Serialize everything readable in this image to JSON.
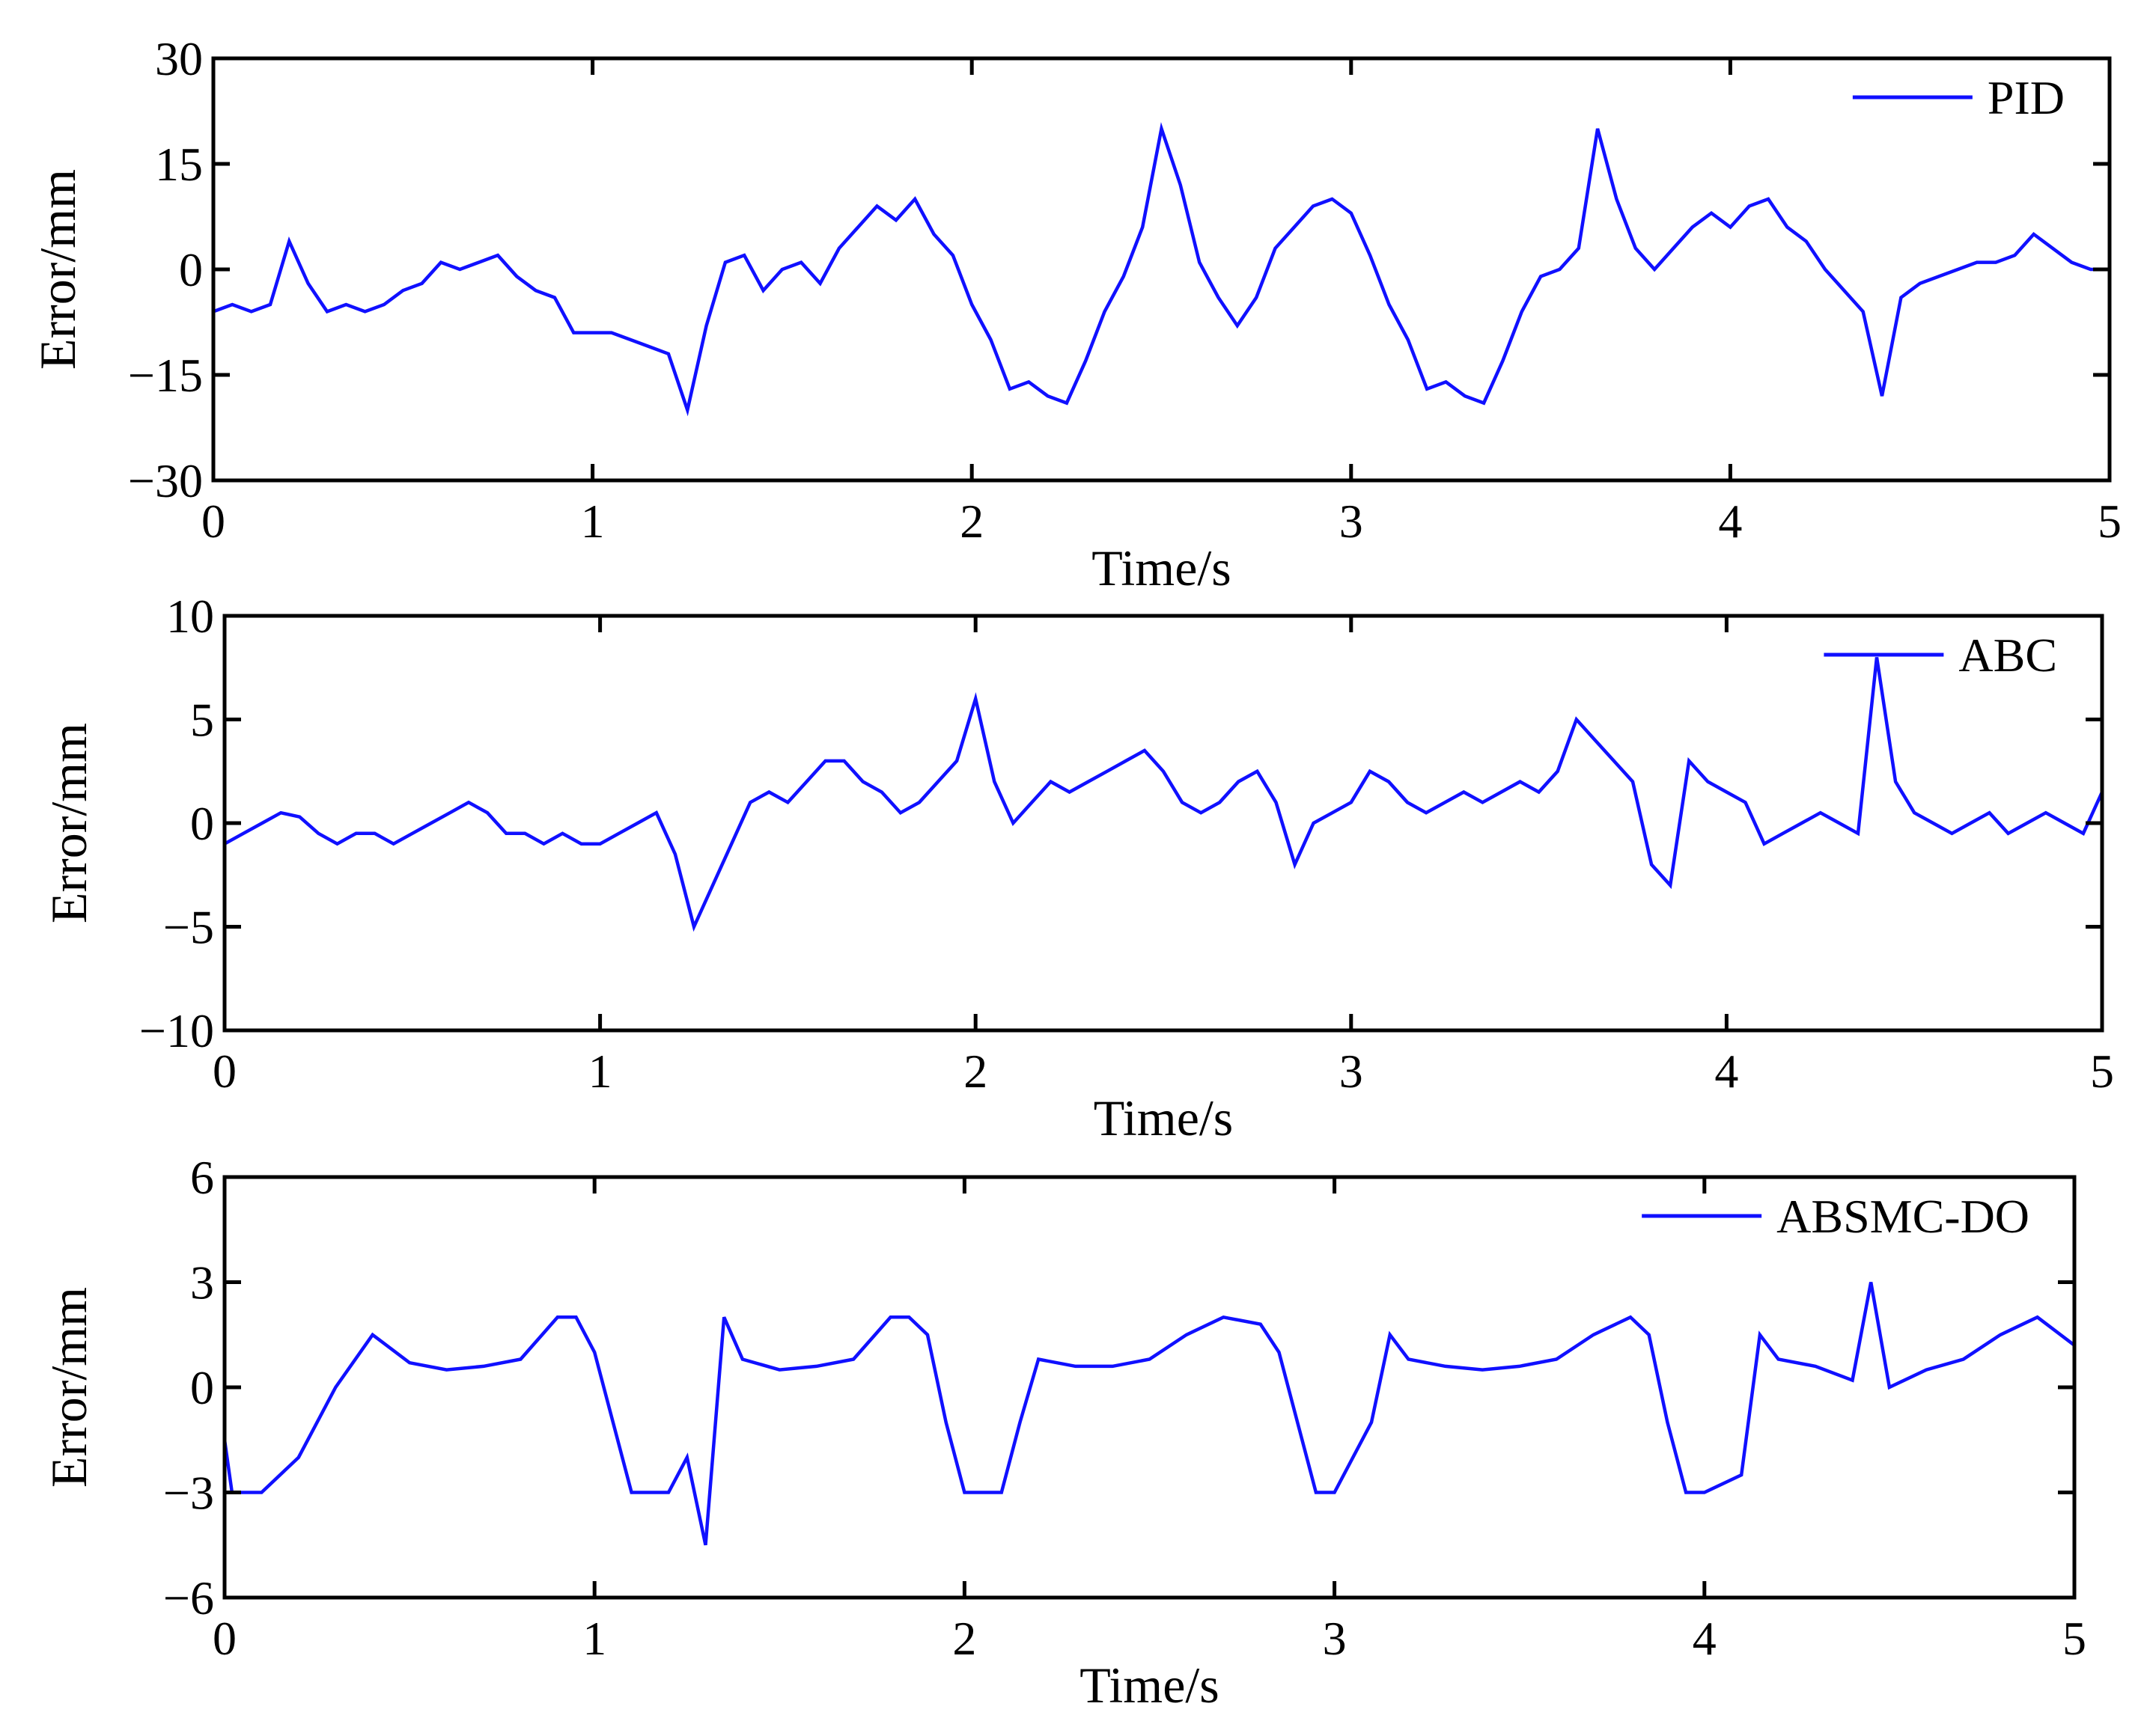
{
  "chart_data": [
    {
      "type": "line",
      "xlabel": "Time/s",
      "ylabel": "Error/mm",
      "xlim": [
        0,
        5
      ],
      "ylim": [
        -30,
        30
      ],
      "xticks": [
        0,
        1,
        2,
        3,
        4,
        5
      ],
      "yticks": [
        30,
        15,
        0,
        -15,
        -30
      ],
      "xtick_labels": [
        "0",
        "1",
        "2",
        "3",
        "4",
        "5"
      ],
      "ytick_labels": [
        "30",
        "15",
        "0",
        "−15",
        "−30"
      ],
      "grid": false,
      "legend_position": "top-right",
      "series": [
        {
          "name": "PID",
          "color": "#1010ff",
          "x": [
            0,
            0.05,
            0.1,
            0.15,
            0.2,
            0.25,
            0.3,
            0.35,
            0.4,
            0.45,
            0.5,
            0.55,
            0.6,
            0.65,
            0.7,
            0.75,
            0.8,
            0.85,
            0.9,
            0.95,
            1.0,
            1.05,
            1.1,
            1.15,
            1.2,
            1.25,
            1.3,
            1.35,
            1.4,
            1.45,
            1.5,
            1.55,
            1.6,
            1.65,
            1.7,
            1.75,
            1.8,
            1.85,
            1.9,
            1.95,
            2.0,
            2.05,
            2.1,
            2.15,
            2.2,
            2.25,
            2.3,
            2.35,
            2.4,
            2.45,
            2.5,
            2.55,
            2.6,
            2.65,
            2.7,
            2.75,
            2.8,
            2.85,
            2.9,
            2.95,
            3.0,
            3.05,
            3.1,
            3.15,
            3.2,
            3.25,
            3.3,
            3.35,
            3.4,
            3.45,
            3.5,
            3.55,
            3.6,
            3.65,
            3.7,
            3.75,
            3.8,
            3.85,
            3.9,
            3.95,
            4.0,
            4.05,
            4.1,
            4.15,
            4.2,
            4.25,
            4.3,
            4.35,
            4.4,
            4.45,
            4.5,
            4.55,
            4.6,
            4.65,
            4.7,
            4.75,
            4.8,
            4.85,
            4.9,
            4.95,
            5.0
          ],
          "y": [
            -6,
            -5,
            -6,
            -5,
            4,
            -2,
            -6,
            -5,
            -6,
            -5,
            -3,
            -2,
            1,
            0,
            1,
            2,
            -1,
            -3,
            -4,
            -9,
            -9,
            -9,
            -10,
            -11,
            -12,
            -20,
            -8,
            1,
            2,
            -3,
            0,
            1,
            -2,
            3,
            6,
            9,
            7,
            10,
            5,
            2,
            -5,
            -10,
            -17,
            -16,
            -18,
            -19,
            -13,
            -6,
            -1,
            6,
            20,
            12,
            1,
            -4,
            -8,
            -4,
            3,
            6,
            9,
            10,
            8,
            2,
            -5,
            -10,
            -17,
            -16,
            -18,
            -19,
            -13,
            -6,
            -1,
            0,
            3,
            20,
            10,
            3,
            0,
            3,
            6,
            8,
            6,
            9,
            10,
            6,
            4,
            0,
            -3,
            -6,
            -18,
            -4,
            -2,
            -1,
            0,
            1,
            1,
            2,
            5,
            3,
            1,
            0,
            0
          ]
        }
      ]
    },
    {
      "type": "line",
      "xlabel": "Time/s",
      "ylabel": "Error/mm",
      "xlim": [
        0,
        5
      ],
      "ylim": [
        -10,
        10
      ],
      "xticks": [
        0,
        1,
        2,
        3,
        4,
        5
      ],
      "yticks": [
        10,
        5,
        0,
        -5,
        -10
      ],
      "xtick_labels": [
        "0",
        "1",
        "2",
        "3",
        "4",
        "5"
      ],
      "ytick_labels": [
        "10",
        "5",
        "0",
        "−5",
        "−10"
      ],
      "grid": false,
      "legend_position": "top-right",
      "series": [
        {
          "name": "ABC",
          "color": "#1010ff",
          "x": [
            0,
            0.05,
            0.1,
            0.15,
            0.2,
            0.25,
            0.3,
            0.35,
            0.4,
            0.45,
            0.5,
            0.55,
            0.6,
            0.65,
            0.7,
            0.75,
            0.8,
            0.85,
            0.9,
            0.95,
            1.0,
            1.05,
            1.1,
            1.15,
            1.2,
            1.25,
            1.3,
            1.35,
            1.4,
            1.45,
            1.5,
            1.55,
            1.6,
            1.65,
            1.7,
            1.75,
            1.8,
            1.85,
            1.9,
            1.95,
            2.0,
            2.05,
            2.1,
            2.15,
            2.2,
            2.25,
            2.3,
            2.35,
            2.4,
            2.45,
            2.5,
            2.55,
            2.6,
            2.65,
            2.7,
            2.75,
            2.8,
            2.85,
            2.9,
            2.95,
            3.0,
            3.05,
            3.1,
            3.15,
            3.2,
            3.25,
            3.3,
            3.35,
            3.4,
            3.45,
            3.5,
            3.55,
            3.6,
            3.65,
            3.7,
            3.75,
            3.8,
            3.85,
            3.9,
            3.95,
            4.0,
            4.05,
            4.1,
            4.15,
            4.2,
            4.25,
            4.3,
            4.35,
            4.4,
            4.45,
            4.5,
            4.55,
            4.6,
            4.65,
            4.7,
            4.75,
            4.8,
            4.85,
            4.9,
            4.95,
            5.0
          ],
          "y": [
            -1,
            -0.5,
            0,
            0.5,
            0.3,
            -0.5,
            -1,
            -0.5,
            -0.5,
            -1,
            -0.5,
            0,
            0.5,
            1,
            0.5,
            -0.5,
            -0.5,
            -1,
            -0.5,
            -1,
            -1,
            -0.5,
            0,
            0.5,
            -1.5,
            -5,
            -3,
            -1,
            1,
            1.5,
            1,
            2,
            3,
            3,
            2,
            1.5,
            0.5,
            1,
            2,
            3,
            6,
            2,
            0,
            1,
            2,
            1.5,
            2,
            2.5,
            3,
            3.5,
            2.5,
            1,
            0.5,
            1,
            2,
            2.5,
            1,
            -2,
            0,
            0.5,
            1,
            2.5,
            2,
            1,
            0.5,
            1,
            1.5,
            1,
            1.5,
            2,
            1.5,
            2.5,
            5,
            4,
            3,
            2,
            -2,
            -3,
            3,
            2,
            1.5,
            1,
            -1,
            -0.5,
            0,
            0.5,
            0,
            -0.5,
            8,
            2,
            0.5,
            0,
            -0.5,
            0,
            0.5,
            -0.5,
            0,
            0.5,
            0,
            -0.5,
            1.5
          ]
        }
      ]
    },
    {
      "type": "line",
      "xlabel": "Time/s",
      "ylabel": "Error/mm",
      "xlim": [
        0,
        5
      ],
      "ylim": [
        -6,
        6
      ],
      "xticks": [
        0,
        1,
        2,
        3,
        4,
        5
      ],
      "yticks": [
        6,
        3,
        0,
        -3,
        -6
      ],
      "xtick_labels": [
        "0",
        "1",
        "2",
        "3",
        "4",
        "5"
      ],
      "ytick_labels": [
        "6",
        "3",
        "0",
        "−3",
        "−6"
      ],
      "grid": false,
      "legend_position": "top-right",
      "series": [
        {
          "name": "ABSMC-DO",
          "color": "#1010ff",
          "x": [
            0,
            0.02,
            0.1,
            0.2,
            0.3,
            0.4,
            0.5,
            0.6,
            0.7,
            0.8,
            0.9,
            0.95,
            1.0,
            1.05,
            1.1,
            1.2,
            1.25,
            1.3,
            1.35,
            1.4,
            1.5,
            1.6,
            1.7,
            1.8,
            1.85,
            1.9,
            1.95,
            2.0,
            2.1,
            2.15,
            2.2,
            2.3,
            2.4,
            2.5,
            2.6,
            2.7,
            2.8,
            2.85,
            2.9,
            2.95,
            3.0,
            3.1,
            3.15,
            3.2,
            3.3,
            3.4,
            3.5,
            3.6,
            3.7,
            3.8,
            3.85,
            3.9,
            3.95,
            4.0,
            4.1,
            4.15,
            4.2,
            4.3,
            4.4,
            4.45,
            4.5,
            4.6,
            4.7,
            4.8,
            4.9,
            5.0
          ],
          "y": [
            -1.5,
            -3,
            -3,
            -2,
            0,
            1.5,
            0.7,
            0.5,
            0.6,
            0.8,
            2,
            2,
            1,
            -1,
            -3,
            -3,
            -2,
            -4.5,
            2,
            0.8,
            0.5,
            0.6,
            0.8,
            2,
            2,
            1.5,
            -1,
            -3,
            -3,
            -1,
            0.8,
            0.6,
            0.6,
            0.8,
            1.5,
            2,
            1.8,
            1,
            -1,
            -3,
            -3,
            -1,
            1.5,
            0.8,
            0.6,
            0.5,
            0.6,
            0.8,
            1.5,
            2,
            1.5,
            -1,
            -3,
            -3,
            -2.5,
            1.5,
            0.8,
            0.6,
            0.2,
            3,
            0,
            0.5,
            0.8,
            1.5,
            2,
            1.2
          ]
        }
      ]
    }
  ]
}
